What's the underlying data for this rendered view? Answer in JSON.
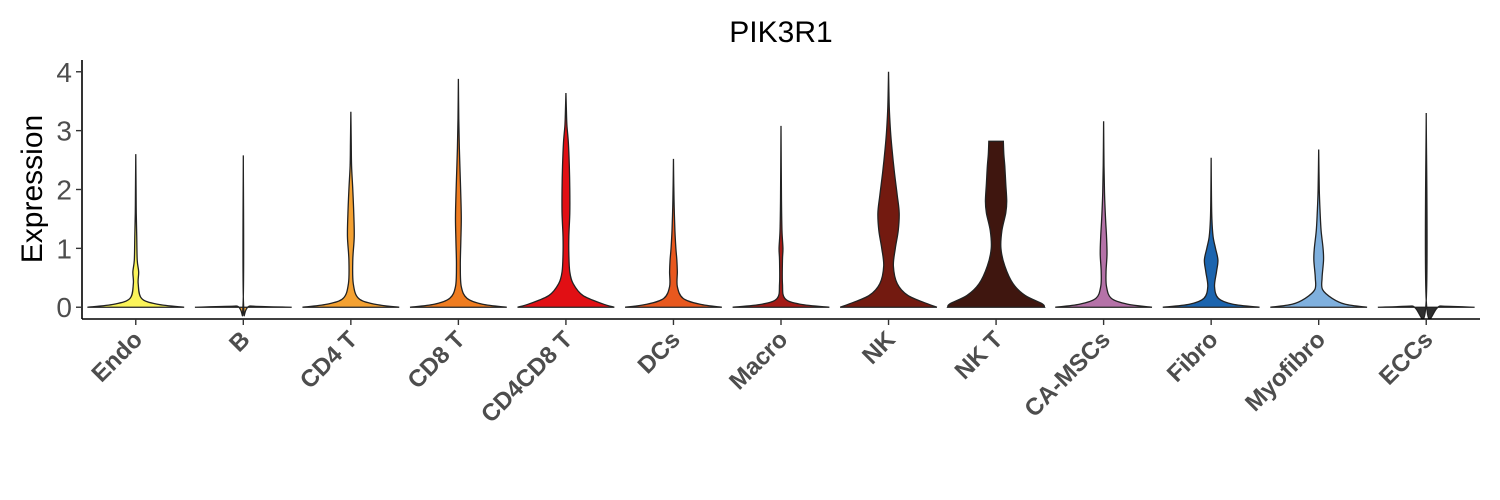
{
  "chart_data": {
    "type": "violin",
    "title": "PIK3R1",
    "xlabel": "",
    "ylabel": "Expression",
    "ylim": [
      -0.2,
      4.2
    ],
    "yticks": [
      "0",
      "1",
      "2",
      "3",
      "4"
    ],
    "grid": false,
    "legend": "none",
    "series": [
      {
        "name": "Endo",
        "color": "#FBF45A",
        "max": 2.6,
        "violin": [
          [
            0,
            1.0
          ],
          [
            0.05,
            0.45
          ],
          [
            0.15,
            0.12
          ],
          [
            0.4,
            0.05
          ],
          [
            0.6,
            0.06
          ],
          [
            0.8,
            0.03
          ],
          [
            1.2,
            0.02
          ],
          [
            1.6,
            0.01
          ],
          [
            2.0,
            0.006
          ],
          [
            2.6,
            0.0
          ]
        ]
      },
      {
        "name": "B",
        "color": "#F7A83C",
        "max": 2.58,
        "violin": [
          [
            0,
            1.0
          ],
          [
            0.02,
            0.15
          ],
          [
            0.05,
            0.005
          ],
          [
            2.58,
            0.0
          ]
        ]
      },
      {
        "name": "CD4 T",
        "color": "#F4A132",
        "max": 3.32,
        "violin": [
          [
            0,
            1.0
          ],
          [
            0.05,
            0.5
          ],
          [
            0.15,
            0.16
          ],
          [
            0.4,
            0.05
          ],
          [
            0.8,
            0.04
          ],
          [
            1.2,
            0.07
          ],
          [
            1.6,
            0.06
          ],
          [
            2.0,
            0.04
          ],
          [
            2.4,
            0.015
          ],
          [
            2.8,
            0.008
          ],
          [
            3.32,
            0.0
          ]
        ]
      },
      {
        "name": "CD8 T",
        "color": "#EF7C20",
        "max": 3.88,
        "violin": [
          [
            0,
            1.0
          ],
          [
            0.05,
            0.5
          ],
          [
            0.15,
            0.18
          ],
          [
            0.35,
            0.06
          ],
          [
            0.7,
            0.04
          ],
          [
            1.1,
            0.05
          ],
          [
            1.5,
            0.06
          ],
          [
            1.9,
            0.05
          ],
          [
            2.3,
            0.035
          ],
          [
            2.7,
            0.02
          ],
          [
            3.2,
            0.008
          ],
          [
            3.88,
            0.0
          ]
        ]
      },
      {
        "name": "CD4CD8 T",
        "color": "#E10F14",
        "max": 3.64,
        "violin": [
          [
            0,
            1.0
          ],
          [
            0.06,
            0.75
          ],
          [
            0.2,
            0.35
          ],
          [
            0.4,
            0.15
          ],
          [
            0.6,
            0.08
          ],
          [
            0.9,
            0.06
          ],
          [
            1.2,
            0.06
          ],
          [
            1.6,
            0.08
          ],
          [
            2.0,
            0.08
          ],
          [
            2.4,
            0.07
          ],
          [
            2.8,
            0.05
          ],
          [
            3.1,
            0.02
          ],
          [
            3.4,
            0.008
          ],
          [
            3.64,
            0.0
          ]
        ]
      },
      {
        "name": "DCs",
        "color": "#E8581E",
        "max": 2.52,
        "violin": [
          [
            0,
            1.0
          ],
          [
            0.05,
            0.55
          ],
          [
            0.15,
            0.2
          ],
          [
            0.35,
            0.08
          ],
          [
            0.6,
            0.08
          ],
          [
            0.8,
            0.07
          ],
          [
            1.0,
            0.05
          ],
          [
            1.3,
            0.03
          ],
          [
            1.7,
            0.015
          ],
          [
            2.1,
            0.006
          ],
          [
            2.52,
            0.0
          ]
        ]
      },
      {
        "name": "Macro",
        "color": "#A41A16",
        "max": 3.08,
        "violin": [
          [
            0,
            1.0
          ],
          [
            0.05,
            0.4
          ],
          [
            0.15,
            0.08
          ],
          [
            0.4,
            0.03
          ],
          [
            0.8,
            0.03
          ],
          [
            1.0,
            0.04
          ],
          [
            1.3,
            0.02
          ],
          [
            1.8,
            0.01
          ],
          [
            2.4,
            0.005
          ],
          [
            3.08,
            0.0
          ]
        ]
      },
      {
        "name": "NK",
        "color": "#731A10",
        "max": 4.0,
        "violin": [
          [
            0,
            1.0
          ],
          [
            0.06,
            0.8
          ],
          [
            0.2,
            0.4
          ],
          [
            0.4,
            0.18
          ],
          [
            0.7,
            0.1
          ],
          [
            1.0,
            0.14
          ],
          [
            1.3,
            0.2
          ],
          [
            1.6,
            0.22
          ],
          [
            1.9,
            0.18
          ],
          [
            2.3,
            0.12
          ],
          [
            2.7,
            0.07
          ],
          [
            3.0,
            0.04
          ],
          [
            3.4,
            0.015
          ],
          [
            4.0,
            0.0
          ]
        ]
      },
      {
        "name": "NK T",
        "color": "#3F160F",
        "max": 2.82,
        "violin": [
          [
            0,
            1.0
          ],
          [
            0.06,
            0.95
          ],
          [
            0.2,
            0.6
          ],
          [
            0.4,
            0.35
          ],
          [
            0.7,
            0.18
          ],
          [
            1.0,
            0.1
          ],
          [
            1.3,
            0.12
          ],
          [
            1.6,
            0.2
          ],
          [
            1.8,
            0.22
          ],
          [
            2.1,
            0.2
          ],
          [
            2.4,
            0.18
          ],
          [
            2.6,
            0.16
          ],
          [
            2.82,
            0.15
          ]
        ]
      },
      {
        "name": "CA-MSCs",
        "color": "#B572A8",
        "max": 3.16,
        "violin": [
          [
            0,
            1.0
          ],
          [
            0.05,
            0.5
          ],
          [
            0.15,
            0.16
          ],
          [
            0.35,
            0.06
          ],
          [
            0.6,
            0.05
          ],
          [
            0.9,
            0.07
          ],
          [
            1.2,
            0.06
          ],
          [
            1.5,
            0.04
          ],
          [
            1.9,
            0.02
          ],
          [
            2.4,
            0.008
          ],
          [
            3.16,
            0.0
          ]
        ]
      },
      {
        "name": "Fibro",
        "color": "#1B64AE",
        "max": 2.54,
        "violin": [
          [
            0,
            1.0
          ],
          [
            0.05,
            0.45
          ],
          [
            0.15,
            0.15
          ],
          [
            0.35,
            0.07
          ],
          [
            0.6,
            0.11
          ],
          [
            0.8,
            0.14
          ],
          [
            1.0,
            0.09
          ],
          [
            1.2,
            0.04
          ],
          [
            1.5,
            0.015
          ],
          [
            1.9,
            0.006
          ],
          [
            2.54,
            0.0
          ]
        ]
      },
      {
        "name": "Myofibro",
        "color": "#7FB0DE",
        "max": 2.68,
        "violin": [
          [
            0,
            1.0
          ],
          [
            0.05,
            0.55
          ],
          [
            0.15,
            0.28
          ],
          [
            0.3,
            0.08
          ],
          [
            0.5,
            0.07
          ],
          [
            0.8,
            0.1
          ],
          [
            1.0,
            0.09
          ],
          [
            1.3,
            0.05
          ],
          [
            1.6,
            0.03
          ],
          [
            2.0,
            0.012
          ],
          [
            2.68,
            0.0
          ]
        ]
      },
      {
        "name": "ECCs",
        "color": "#2E2E2E",
        "max": 3.3,
        "violin": [
          [
            0,
            1.0
          ],
          [
            0.02,
            0.3
          ],
          [
            0.05,
            0.005
          ],
          [
            3.3,
            0.0
          ]
        ]
      }
    ]
  }
}
